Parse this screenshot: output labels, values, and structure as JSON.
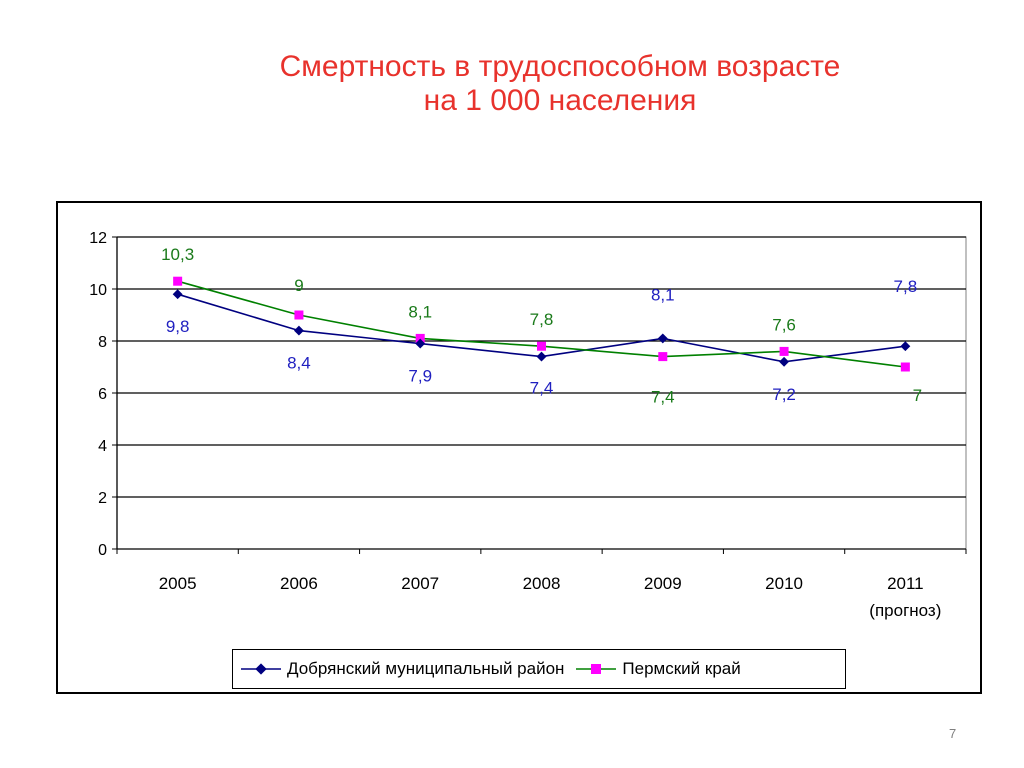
{
  "slide": {
    "title_line1": "Смертность в трудоспособном возрасте",
    "title_line2": "на 1 000 населения",
    "page_number": "7"
  },
  "chart_data": {
    "type": "line",
    "categories": [
      "2005",
      "2006",
      "2007",
      "2008",
      "2009",
      "2010",
      "2011"
    ],
    "category_sublabels": [
      "",
      "",
      "",
      "",
      "",
      "",
      "(прогноз)"
    ],
    "ylim": [
      0,
      12
    ],
    "yticks": [
      0,
      2,
      4,
      6,
      8,
      10,
      12
    ],
    "grid": true,
    "legend_position": "bottom",
    "series": [
      {
        "name": "Добрянский муниципальный район",
        "values": [
          9.8,
          8.4,
          7.9,
          7.4,
          8.1,
          7.2,
          7.8
        ],
        "labels": [
          "9,8",
          "8,4",
          "7,9",
          "7,4",
          "8,1",
          "7,2",
          "7,8"
        ],
        "label_positions": [
          "below",
          "below",
          "below",
          "below",
          "above",
          "below",
          "above"
        ],
        "line_color": "#000080",
        "marker": "diamond",
        "marker_color": "#000080",
        "label_color": "#2020c0"
      },
      {
        "name": "Пермский край",
        "values": [
          10.3,
          9,
          8.1,
          7.8,
          7.4,
          7.6,
          7
        ],
        "labels": [
          "10,3",
          "9",
          "8,1",
          "7,8",
          "7,4",
          "7,6",
          "7"
        ],
        "label_positions": [
          "above",
          "above",
          "above",
          "above",
          "below",
          "above",
          "below"
        ],
        "line_color": "#008000",
        "marker": "square",
        "marker_color": "#ff00ff",
        "label_color": "#1a7a1a"
      }
    ]
  }
}
